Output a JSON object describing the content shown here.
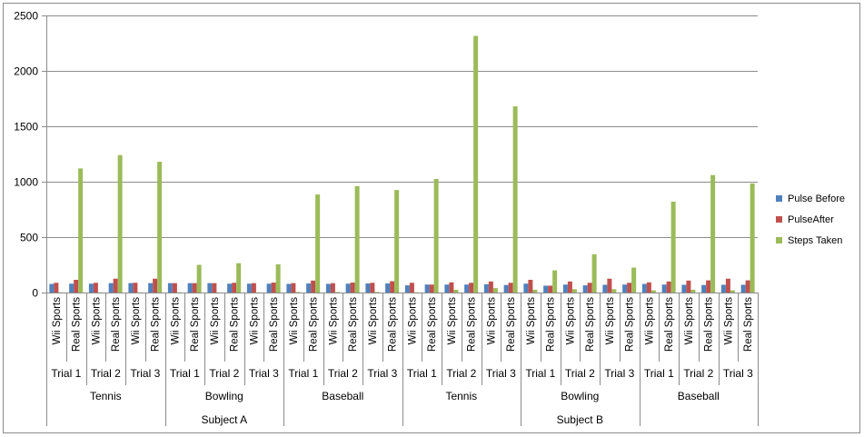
{
  "chart_data": {
    "type": "bar",
    "title": "",
    "xlabel": "",
    "ylabel": "",
    "ylim": [
      0,
      2500
    ],
    "yticks": [
      0,
      500,
      1000,
      1500,
      2000,
      2500
    ],
    "grid": true,
    "legend_position": "right",
    "categories": [
      "Wii Sports",
      "Real Sports",
      "Wii Sports",
      "Real Sports",
      "Wii Sports",
      "Real Sports",
      "Wii Sports",
      "Real Sports",
      "Wii Sports",
      "Real Sports",
      "Wii Sports",
      "Real Sports",
      "Wii Sports",
      "Real Sports",
      "Wii Sports",
      "Real Sports",
      "Wii Sports",
      "Real Sports",
      "Wii Sports",
      "Real Sports",
      "Wii Sports",
      "Real Sports",
      "Wii Sports",
      "Real Sports",
      "Wii Sports",
      "Real Sports",
      "Wii Sports",
      "Real Sports",
      "Wii Sports",
      "Real Sports",
      "Wii Sports",
      "Real Sports",
      "Wii Sports",
      "Real Sports",
      "Wii Sports",
      "Real Sports"
    ],
    "trials": [
      "Trial 1",
      "Trial 2",
      "Trial 3",
      "Trial 1",
      "Trial 2",
      "Trial 3",
      "Trial 1",
      "Trial 2",
      "Trial 3",
      "Trial 1",
      "Trial 2",
      "Trial 3",
      "Trial 1",
      "Trial 2",
      "Trial 3",
      "Trial 1",
      "Trial 2",
      "Trial 3"
    ],
    "sports": [
      "Tennis",
      "Bowling",
      "Baseball",
      "Tennis",
      "Bowling",
      "Baseball"
    ],
    "subjects": [
      "Subject A",
      "Subject B"
    ],
    "series": [
      {
        "name": "Pulse Before",
        "color": "#4f81bd",
        "values": [
          78,
          80,
          80,
          85,
          85,
          85,
          85,
          85,
          85,
          80,
          80,
          80,
          78,
          82,
          78,
          80,
          82,
          82,
          65,
          72,
          72,
          72,
          75,
          68,
          80,
          62,
          72,
          65,
          70,
          72,
          78,
          72,
          70,
          68,
          70,
          70
        ]
      },
      {
        "name": "PulseAfter",
        "color": "#c0504d",
        "values": [
          88,
          115,
          88,
          125,
          88,
          125,
          85,
          85,
          85,
          88,
          85,
          90,
          85,
          108,
          85,
          90,
          88,
          102,
          88,
          72,
          92,
          88,
          100,
          88,
          115,
          62,
          100,
          88,
          125,
          88,
          92,
          100,
          108,
          110,
          125,
          110
        ]
      },
      {
        "name": "Steps Taken",
        "color": "#9bbb59",
        "values": [
          2,
          1120,
          2,
          1240,
          2,
          1180,
          2,
          250,
          2,
          265,
          2,
          255,
          5,
          885,
          5,
          960,
          5,
          925,
          2,
          1025,
          25,
          2315,
          40,
          1680,
          25,
          200,
          30,
          345,
          30,
          225,
          20,
          820,
          25,
          1060,
          20,
          985
        ]
      }
    ]
  }
}
